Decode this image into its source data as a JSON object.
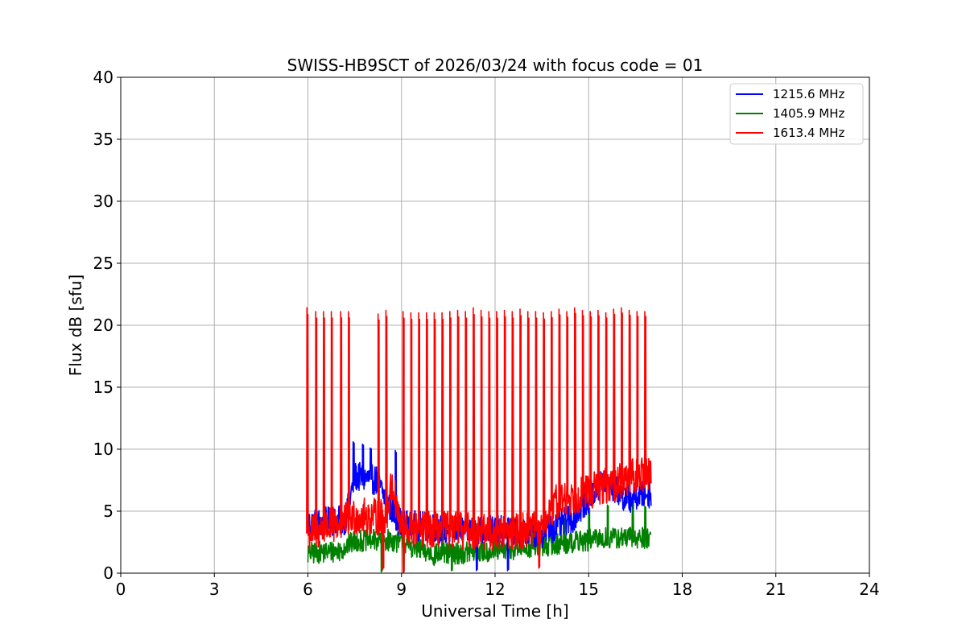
{
  "chart_data": {
    "type": "line",
    "title": "SWISS-HB9SCT of 2026/03/24 with focus code = 01",
    "xlabel": "Universal Time [h]",
    "ylabel": "Flux dB [sfu]",
    "xlim": [
      0,
      24
    ],
    "ylim": [
      0,
      40
    ],
    "xticks": [
      0,
      3,
      6,
      9,
      12,
      15,
      18,
      21,
      24
    ],
    "yticks": [
      0,
      5,
      10,
      15,
      20,
      25,
      30,
      35,
      40
    ],
    "grid": true,
    "legend_position": "top-right",
    "series": [
      {
        "name": "1215.6 MHz",
        "color": "#0000ff",
        "baseline": [
          [
            6.0,
            4.0
          ],
          [
            7.2,
            4.3
          ],
          [
            7.5,
            7.8
          ],
          [
            8.2,
            7.5
          ],
          [
            8.6,
            5.5
          ],
          [
            9.0,
            4.0
          ],
          [
            10.5,
            3.5
          ],
          [
            12.0,
            3.5
          ],
          [
            13.5,
            3.2
          ],
          [
            14.5,
            4.5
          ],
          [
            15.5,
            7.5
          ],
          [
            16.2,
            6.0
          ],
          [
            17.0,
            6.5
          ]
        ],
        "noise": 1.2,
        "spikes": [
          [
            7.45,
            10.6
          ],
          [
            7.75,
            10.4
          ],
          [
            8.0,
            10.1
          ],
          [
            8.8,
            9.9
          ]
        ],
        "dips": [
          [
            11.4,
            0.2
          ],
          [
            12.4,
            0.2
          ]
        ]
      },
      {
        "name": "1405.9 MHz",
        "color": "#008000",
        "baseline": [
          [
            6.0,
            1.6
          ],
          [
            7.0,
            1.8
          ],
          [
            7.5,
            2.6
          ],
          [
            8.5,
            2.7
          ],
          [
            9.0,
            2.5
          ],
          [
            10.0,
            1.5
          ],
          [
            12.0,
            1.8
          ],
          [
            13.5,
            2.2
          ],
          [
            14.5,
            2.5
          ],
          [
            15.5,
            2.8
          ],
          [
            17.0,
            2.9
          ]
        ],
        "noise": 0.9,
        "spikes": [
          [
            9.2,
            4.6
          ],
          [
            10.3,
            4.2
          ],
          [
            13.2,
            4.4
          ],
          [
            14.2,
            4.5
          ],
          [
            15.0,
            5.3
          ],
          [
            15.6,
            5.5
          ],
          [
            16.4,
            5.6
          ],
          [
            16.8,
            5.4
          ]
        ],
        "dips": [
          [
            8.35,
            0.1
          ],
          [
            9.05,
            0.1
          ],
          [
            10.6,
            0.2
          ]
        ]
      },
      {
        "name": "1613.4 MHz",
        "color": "#ff0000",
        "baseline": [
          [
            6.0,
            3.2
          ],
          [
            7.0,
            4.0
          ],
          [
            7.5,
            4.6
          ],
          [
            8.5,
            4.5
          ],
          [
            8.7,
            7.2
          ],
          [
            9.0,
            3.5
          ],
          [
            10.5,
            3.5
          ],
          [
            12.0,
            3.3
          ],
          [
            13.4,
            3.5
          ],
          [
            14.0,
            5.8
          ],
          [
            15.0,
            6.6
          ],
          [
            16.0,
            7.4
          ],
          [
            17.0,
            8.2
          ]
        ],
        "noise": 1.5,
        "spikes_label": "calibration pulses",
        "spikes": [
          [
            5.97,
            21.4
          ],
          [
            6.25,
            21.1
          ],
          [
            6.5,
            21.1
          ],
          [
            6.75,
            21.1
          ],
          [
            7.05,
            21.1
          ],
          [
            7.3,
            21.1
          ],
          [
            8.25,
            20.9
          ],
          [
            8.5,
            21.2
          ],
          [
            9.05,
            21.1
          ],
          [
            9.3,
            21.0
          ],
          [
            9.55,
            21.0
          ],
          [
            9.8,
            21.0
          ],
          [
            10.05,
            21.0
          ],
          [
            10.3,
            21.0
          ],
          [
            10.55,
            21.1
          ],
          [
            10.8,
            21.2
          ],
          [
            11.05,
            21.1
          ],
          [
            11.3,
            21.4
          ],
          [
            11.55,
            21.2
          ],
          [
            11.8,
            21.1
          ],
          [
            12.05,
            21.1
          ],
          [
            12.3,
            21.2
          ],
          [
            12.55,
            21.1
          ],
          [
            12.8,
            21.3
          ],
          [
            13.05,
            21.1
          ],
          [
            13.3,
            21.1
          ],
          [
            13.55,
            21.0
          ],
          [
            13.8,
            21.1
          ],
          [
            14.05,
            21.3
          ],
          [
            14.3,
            21.1
          ],
          [
            14.55,
            21.4
          ],
          [
            14.8,
            21.2
          ],
          [
            15.05,
            21.1
          ],
          [
            15.3,
            21.2
          ],
          [
            15.55,
            21.0
          ],
          [
            15.8,
            21.3
          ],
          [
            16.05,
            21.4
          ],
          [
            16.3,
            21.2
          ],
          [
            16.55,
            21.1
          ],
          [
            16.8,
            21.1
          ]
        ],
        "dips": [
          [
            8.4,
            0.3
          ],
          [
            9.05,
            0.0
          ],
          [
            13.4,
            0.4
          ]
        ]
      }
    ]
  }
}
